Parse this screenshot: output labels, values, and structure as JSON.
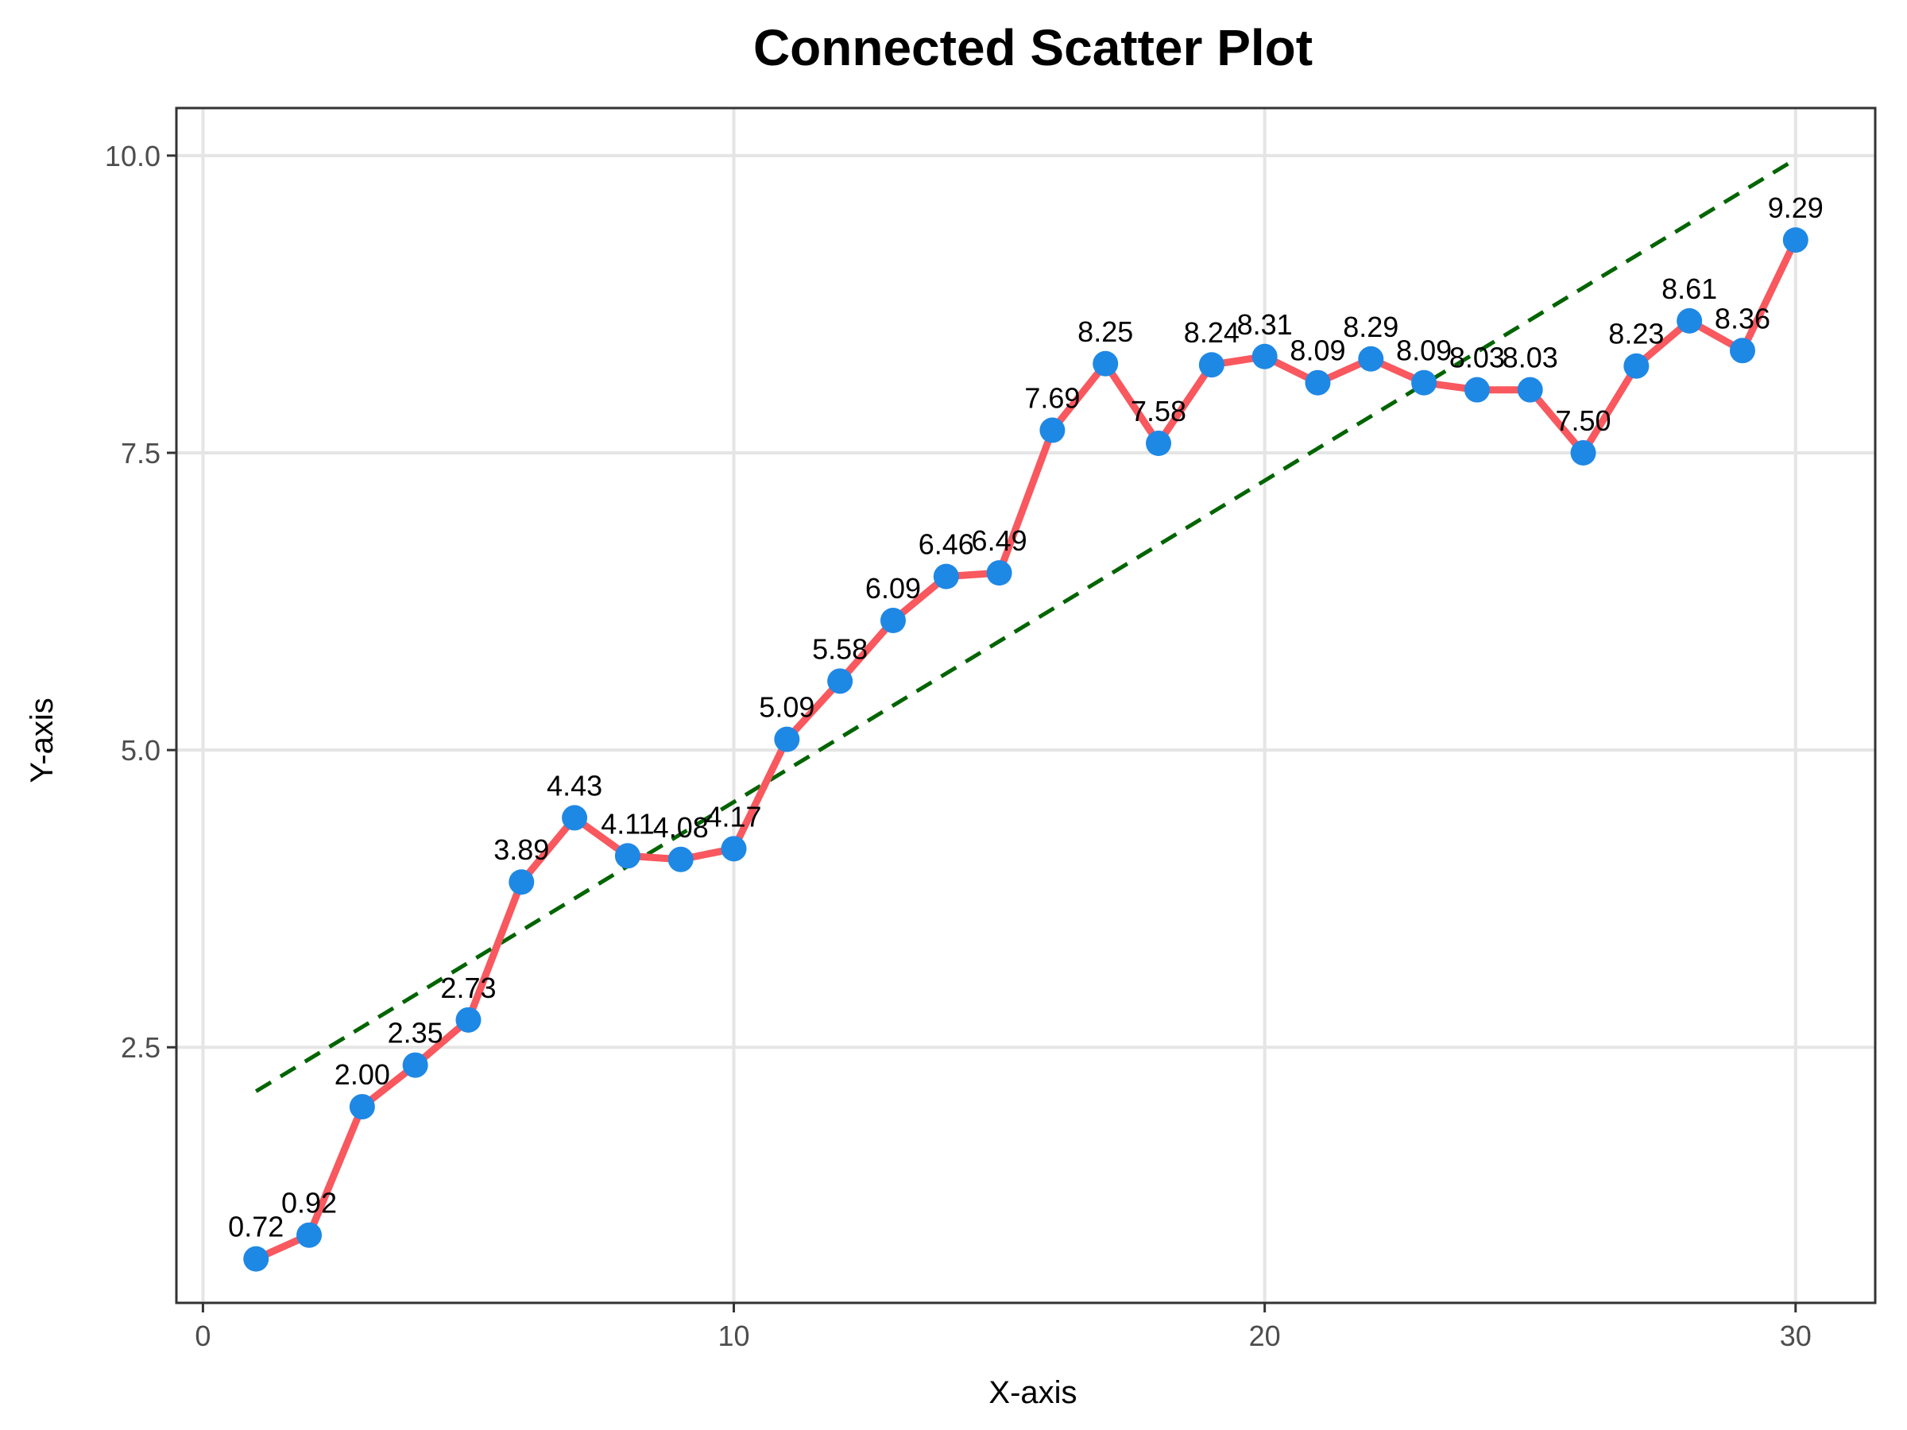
{
  "chart_data": {
    "type": "scatter",
    "title": "Connected Scatter Plot",
    "xlabel": "X-axis",
    "ylabel": "Y-axis",
    "xlim": [
      -0.5,
      31.5
    ],
    "ylim": [
      0.35,
      10.4
    ],
    "x_ticks": [
      0,
      10,
      20,
      30
    ],
    "y_ticks": [
      2.5,
      5.0,
      7.5,
      10.0
    ],
    "x_tick_labels": [
      "0",
      "10",
      "20",
      "30"
    ],
    "y_tick_labels": [
      "2.5",
      "5.0",
      "7.5",
      "10.0"
    ],
    "grid": true,
    "x": [
      1,
      2,
      3,
      4,
      5,
      6,
      7,
      8,
      9,
      10,
      11,
      12,
      13,
      14,
      15,
      16,
      17,
      18,
      19,
      20,
      21,
      22,
      23,
      24,
      25,
      26,
      27,
      28,
      29,
      30
    ],
    "y": [
      0.72,
      0.92,
      2.0,
      2.35,
      2.73,
      3.89,
      4.43,
      4.11,
      4.08,
      4.17,
      5.09,
      5.58,
      6.09,
      6.46,
      6.49,
      7.69,
      8.25,
      7.58,
      8.24,
      8.31,
      8.09,
      8.29,
      8.09,
      8.03,
      8.03,
      7.5,
      8.23,
      8.61,
      8.36,
      9.29
    ],
    "point_labels": [
      "0.72",
      "0.92",
      "2.00",
      "2.35",
      "2.73",
      "3.89",
      "4.43",
      "4.11",
      "4.08",
      "4.17",
      "5.09",
      "5.58",
      "6.09",
      "6.46",
      "6.49",
      "7.69",
      "8.25",
      "7.58",
      "8.24",
      "8.31",
      "8.09",
      "8.29",
      "8.09",
      "8.03",
      "8.03",
      "7.50",
      "8.23",
      "8.61",
      "8.36",
      "9.29"
    ],
    "trend_line": {
      "x": [
        1,
        30
      ],
      "y": [
        2.13,
        9.97
      ]
    },
    "colors": {
      "line": "#f8585e",
      "point": "#1e88e5",
      "trend": "#006400",
      "grid": "#e5e5e5",
      "border": "#333333"
    }
  }
}
